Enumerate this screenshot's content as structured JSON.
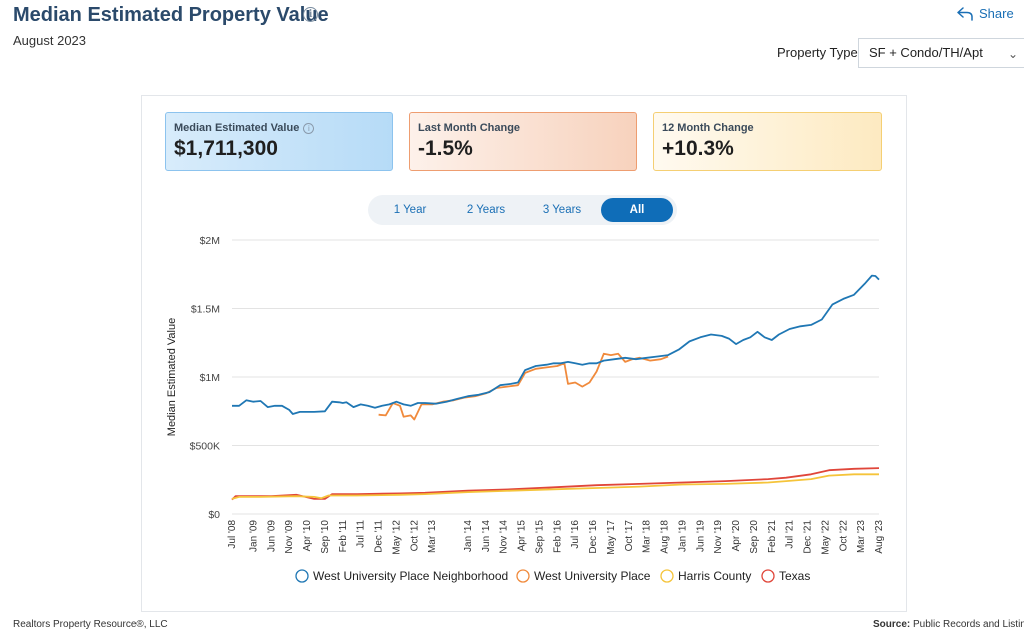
{
  "header": {
    "title": "Median Estimated Property Value",
    "subtitle": "August 2023",
    "share_label": "Share",
    "property_type_label": "Property Type",
    "property_type_value": "SF + Condo/TH/Apt"
  },
  "kpis": [
    {
      "label": "Median Estimated Value",
      "value": "$1,711,300"
    },
    {
      "label": "Last Month Change",
      "value": "-1.5%"
    },
    {
      "label": "12 Month Change",
      "value": "+10.3%"
    }
  ],
  "range_tabs": [
    {
      "label": "1 Year",
      "active": false
    },
    {
      "label": "2 Years",
      "active": false
    },
    {
      "label": "3 Years",
      "active": false
    },
    {
      "label": "All",
      "active": true
    }
  ],
  "footer": {
    "left": "Realtors Property Resource®, LLC",
    "source_label": "Source:",
    "source_value": "Public Records and Listings"
  },
  "chart_data": {
    "type": "line",
    "ylabel": "Median Estimated Value",
    "ylim": [
      0,
      2000000
    ],
    "yticks": [
      0,
      500000,
      1000000,
      1500000,
      2000000
    ],
    "ytick_labels": [
      "$0",
      "$500K",
      "$1M",
      "$1.5M",
      "$2M"
    ],
    "x_start": "2008-07",
    "x_end": "2023-08",
    "xtick_labels": [
      "Jul '08",
      "Jan '09",
      "Jun '09",
      "Nov '09",
      "Apr '10",
      "Sep '10",
      "Feb '11",
      "Jul '11",
      "Dec '11",
      "May '12",
      "Oct '12",
      "Mar '13",
      "Jan '14",
      "Jun '14",
      "Nov '14",
      "Apr '15",
      "Sep '15",
      "Feb '16",
      "Jul '16",
      "Dec '16",
      "May '17",
      "Oct '17",
      "Mar '18",
      "Aug '18",
      "Jan '19",
      "Jun '19",
      "Nov '19",
      "Apr '20",
      "Sep '20",
      "Feb '21",
      "Jul '21",
      "Dec '21",
      "May '22",
      "Oct '22",
      "Mar '23",
      "Aug '23"
    ],
    "xtick_dates": [
      "2008-07",
      "2009-01",
      "2009-06",
      "2009-11",
      "2010-04",
      "2010-09",
      "2011-02",
      "2011-07",
      "2011-12",
      "2012-05",
      "2012-10",
      "2013-03",
      "2014-01",
      "2014-06",
      "2014-11",
      "2015-04",
      "2015-09",
      "2016-02",
      "2016-07",
      "2016-12",
      "2017-05",
      "2017-10",
      "2018-03",
      "2018-08",
      "2019-01",
      "2019-06",
      "2019-11",
      "2020-04",
      "2020-09",
      "2021-02",
      "2021-07",
      "2021-12",
      "2022-05",
      "2022-10",
      "2023-03",
      "2023-08"
    ],
    "legend_position": "bottom",
    "grid": true,
    "series": [
      {
        "name": "West University Place Neighborhood",
        "color": "#1f77b4",
        "points": [
          [
            "2008-07",
            790000
          ],
          [
            "2008-09",
            790000
          ],
          [
            "2008-11",
            830000
          ],
          [
            "2009-01",
            820000
          ],
          [
            "2009-03",
            825000
          ],
          [
            "2009-05",
            780000
          ],
          [
            "2009-07",
            790000
          ],
          [
            "2009-09",
            790000
          ],
          [
            "2009-11",
            760000
          ],
          [
            "2009-12",
            730000
          ],
          [
            "2010-02",
            745000
          ],
          [
            "2010-06",
            745000
          ],
          [
            "2010-09",
            750000
          ],
          [
            "2010-11",
            820000
          ],
          [
            "2011-01",
            815000
          ],
          [
            "2011-02",
            810000
          ],
          [
            "2011-03",
            815000
          ],
          [
            "2011-05",
            780000
          ],
          [
            "2011-07",
            800000
          ],
          [
            "2011-09",
            790000
          ],
          [
            "2011-11",
            775000
          ],
          [
            "2012-01",
            790000
          ],
          [
            "2012-03",
            800000
          ],
          [
            "2012-05",
            820000
          ],
          [
            "2012-07",
            800000
          ],
          [
            "2012-09",
            790000
          ],
          [
            "2012-11",
            810000
          ],
          [
            "2013-01",
            810000
          ],
          [
            "2013-04",
            805000
          ],
          [
            "2013-07",
            820000
          ],
          [
            "2013-10",
            840000
          ],
          [
            "2014-01",
            860000
          ],
          [
            "2014-04",
            870000
          ],
          [
            "2014-07",
            890000
          ],
          [
            "2014-10",
            940000
          ],
          [
            "2015-01",
            950000
          ],
          [
            "2015-03",
            960000
          ],
          [
            "2015-05",
            1050000
          ],
          [
            "2015-08",
            1080000
          ],
          [
            "2015-11",
            1090000
          ],
          [
            "2016-01",
            1100000
          ],
          [
            "2016-03",
            1100000
          ],
          [
            "2016-05",
            1110000
          ],
          [
            "2016-07",
            1100000
          ],
          [
            "2016-09",
            1090000
          ],
          [
            "2016-11",
            1100000
          ],
          [
            "2017-01",
            1100000
          ],
          [
            "2017-03",
            1120000
          ],
          [
            "2017-06",
            1130000
          ],
          [
            "2017-09",
            1140000
          ],
          [
            "2017-12",
            1130000
          ],
          [
            "2018-03",
            1140000
          ],
          [
            "2018-06",
            1150000
          ],
          [
            "2018-09",
            1160000
          ],
          [
            "2018-12",
            1200000
          ],
          [
            "2019-03",
            1260000
          ],
          [
            "2019-06",
            1290000
          ],
          [
            "2019-09",
            1310000
          ],
          [
            "2019-12",
            1300000
          ],
          [
            "2020-02",
            1280000
          ],
          [
            "2020-04",
            1240000
          ],
          [
            "2020-06",
            1270000
          ],
          [
            "2020-08",
            1290000
          ],
          [
            "2020-10",
            1330000
          ],
          [
            "2020-12",
            1290000
          ],
          [
            "2021-02",
            1270000
          ],
          [
            "2021-04",
            1310000
          ],
          [
            "2021-07",
            1350000
          ],
          [
            "2021-10",
            1370000
          ],
          [
            "2022-01",
            1380000
          ],
          [
            "2022-04",
            1420000
          ],
          [
            "2022-07",
            1530000
          ],
          [
            "2022-10",
            1570000
          ],
          [
            "2023-01",
            1600000
          ],
          [
            "2023-04",
            1680000
          ],
          [
            "2023-06",
            1740000
          ],
          [
            "2023-07",
            1737000
          ],
          [
            "2023-08",
            1711300
          ]
        ]
      },
      {
        "name": "West University Place",
        "color": "#f08a3c",
        "points": [
          [
            "2011-12",
            725000
          ],
          [
            "2012-02",
            720000
          ],
          [
            "2012-04",
            810000
          ],
          [
            "2012-06",
            790000
          ],
          [
            "2012-07",
            710000
          ],
          [
            "2012-09",
            720000
          ],
          [
            "2012-10",
            690000
          ],
          [
            "2012-12",
            800000
          ],
          [
            "2013-03",
            800000
          ],
          [
            "2013-06",
            820000
          ],
          [
            "2013-09",
            830000
          ],
          [
            "2013-12",
            850000
          ],
          [
            "2014-03",
            860000
          ],
          [
            "2014-06",
            880000
          ],
          [
            "2014-09",
            920000
          ],
          [
            "2014-12",
            930000
          ],
          [
            "2015-03",
            940000
          ],
          [
            "2015-05",
            1030000
          ],
          [
            "2015-08",
            1060000
          ],
          [
            "2015-11",
            1070000
          ],
          [
            "2016-02",
            1080000
          ],
          [
            "2016-04",
            1100000
          ],
          [
            "2016-05",
            950000
          ],
          [
            "2016-07",
            960000
          ],
          [
            "2016-09",
            930000
          ],
          [
            "2016-11",
            960000
          ],
          [
            "2017-01",
            1040000
          ],
          [
            "2017-03",
            1170000
          ],
          [
            "2017-05",
            1160000
          ],
          [
            "2017-07",
            1170000
          ],
          [
            "2017-09",
            1110000
          ],
          [
            "2017-11",
            1130000
          ],
          [
            "2018-01",
            1140000
          ],
          [
            "2018-04",
            1120000
          ],
          [
            "2018-07",
            1130000
          ],
          [
            "2018-09",
            1150000
          ]
        ]
      },
      {
        "name": "Harris County",
        "color": "#f5c43a",
        "points": [
          [
            "2008-07",
            110000
          ],
          [
            "2008-09",
            125000
          ],
          [
            "2009-03",
            125000
          ],
          [
            "2010-01",
            130000
          ],
          [
            "2010-06",
            125000
          ],
          [
            "2010-08",
            115000
          ],
          [
            "2010-10",
            135000
          ],
          [
            "2011-06",
            135000
          ],
          [
            "2012-06",
            140000
          ],
          [
            "2013-01",
            145000
          ],
          [
            "2014-01",
            160000
          ],
          [
            "2015-01",
            170000
          ],
          [
            "2016-01",
            180000
          ],
          [
            "2017-01",
            190000
          ],
          [
            "2018-01",
            200000
          ],
          [
            "2019-01",
            215000
          ],
          [
            "2020-01",
            220000
          ],
          [
            "2021-01",
            230000
          ],
          [
            "2021-06",
            240000
          ],
          [
            "2022-01",
            255000
          ],
          [
            "2022-06",
            280000
          ],
          [
            "2023-01",
            290000
          ],
          [
            "2023-08",
            290000
          ]
        ]
      },
      {
        "name": "Texas",
        "color": "#e0463a",
        "points": [
          [
            "2008-07",
            105000
          ],
          [
            "2008-08",
            130000
          ],
          [
            "2009-06",
            130000
          ],
          [
            "2010-01",
            140000
          ],
          [
            "2010-06",
            110000
          ],
          [
            "2010-09",
            110000
          ],
          [
            "2010-11",
            145000
          ],
          [
            "2011-06",
            145000
          ],
          [
            "2012-06",
            150000
          ],
          [
            "2013-01",
            155000
          ],
          [
            "2014-01",
            170000
          ],
          [
            "2015-01",
            180000
          ],
          [
            "2016-01",
            195000
          ],
          [
            "2017-01",
            210000
          ],
          [
            "2018-01",
            220000
          ],
          [
            "2019-01",
            230000
          ],
          [
            "2020-01",
            240000
          ],
          [
            "2021-01",
            255000
          ],
          [
            "2021-06",
            265000
          ],
          [
            "2022-01",
            290000
          ],
          [
            "2022-06",
            320000
          ],
          [
            "2023-01",
            330000
          ],
          [
            "2023-08",
            335000
          ]
        ]
      }
    ]
  }
}
